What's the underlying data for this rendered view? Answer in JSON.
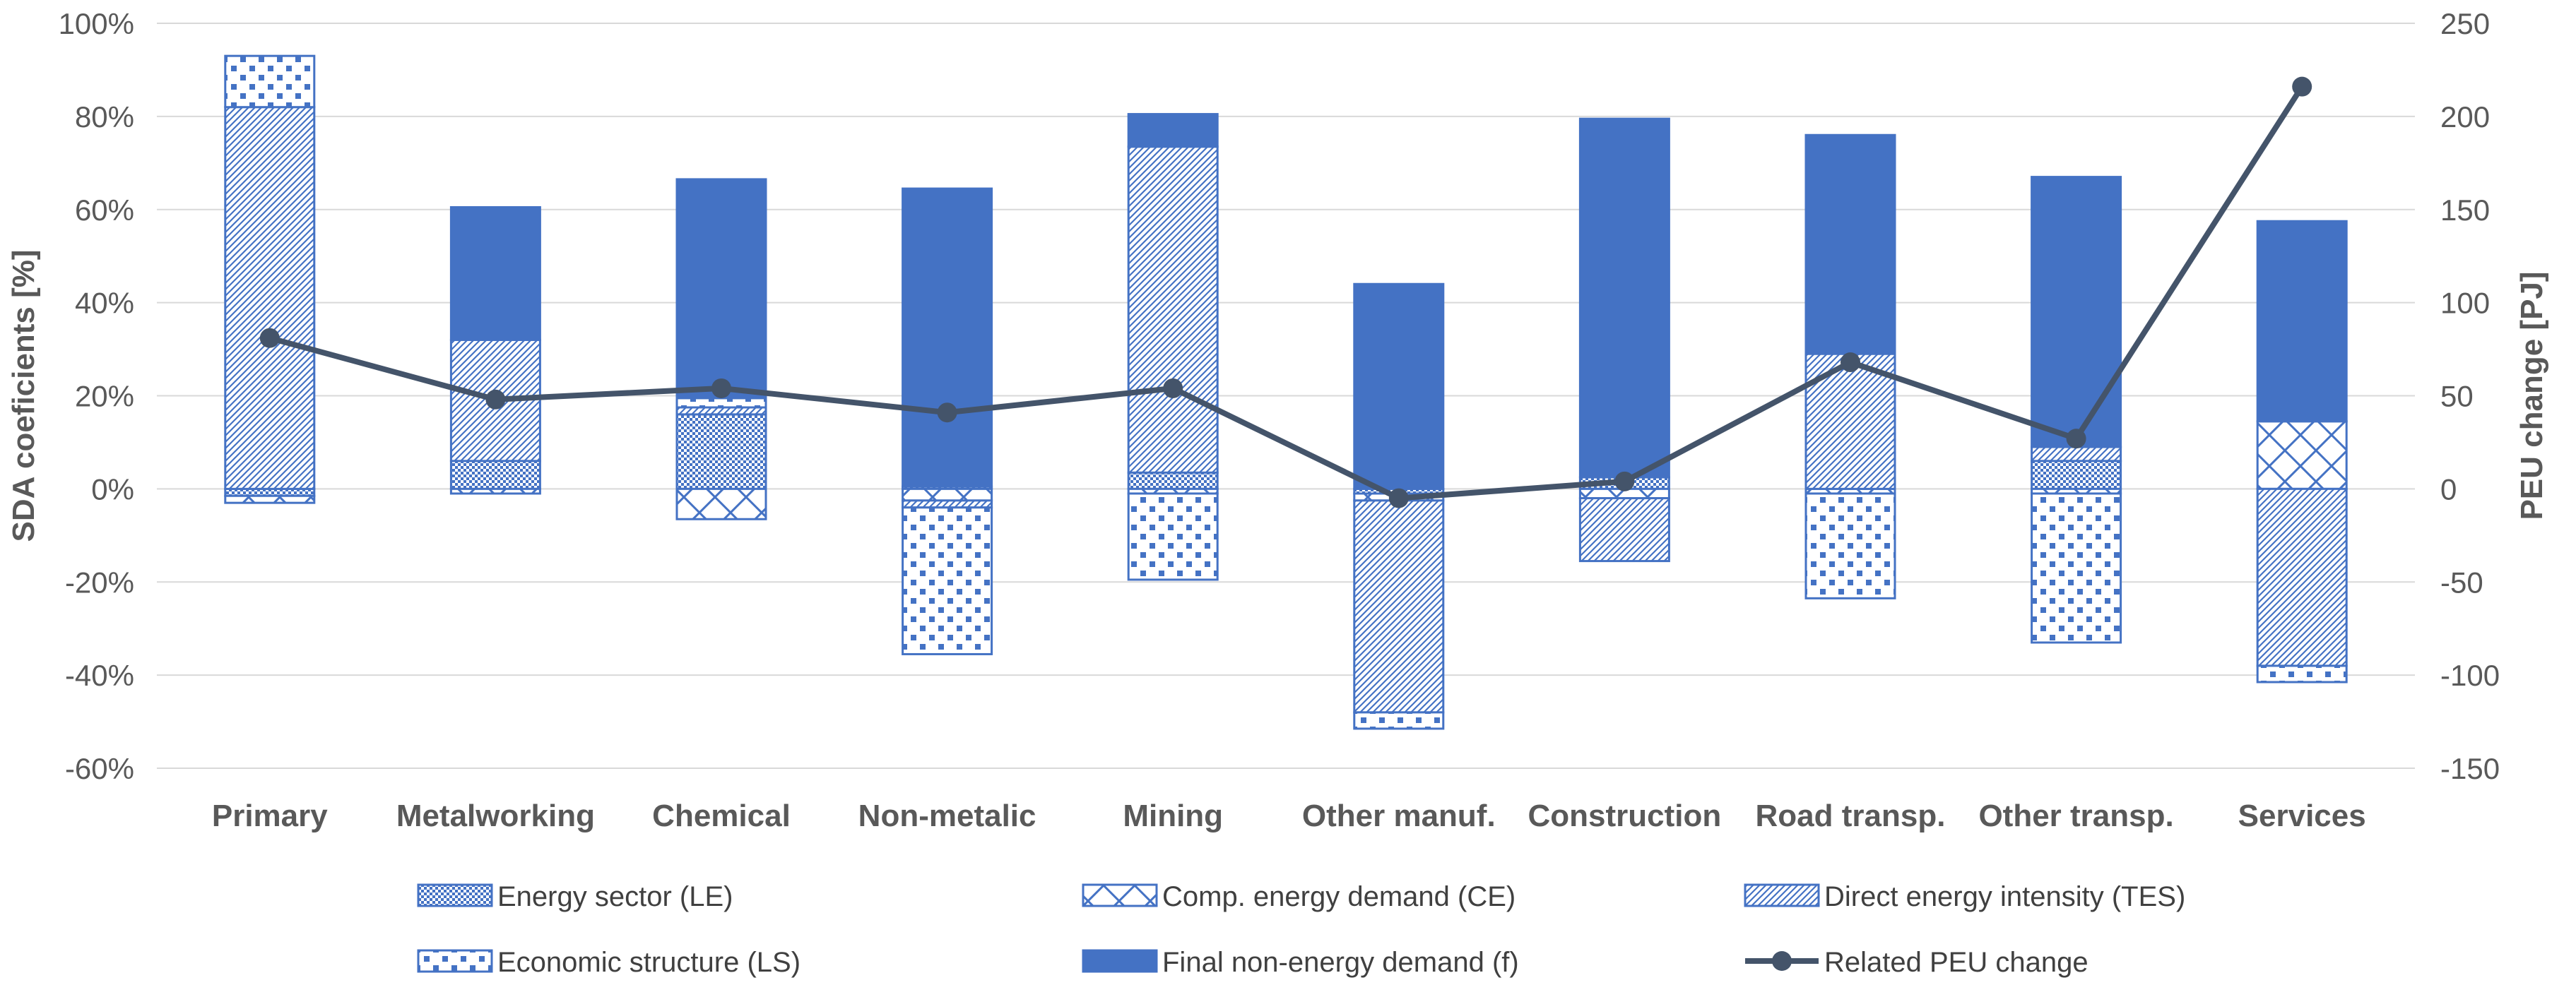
{
  "chart_data": {
    "type": "bar",
    "stacked": true,
    "categories": [
      "Primary",
      "Metalworking",
      "Chemical",
      "Non-metalic",
      "Mining",
      "Other manuf.",
      "Construction",
      "Road transp.",
      "Other transp.",
      "Services"
    ],
    "y_left": {
      "title": "SDA coeficients [%]",
      "min": -60,
      "max": 100,
      "step": 20,
      "tick_labels": [
        "-60%",
        "-40%",
        "-20%",
        "0%",
        "20%",
        "40%",
        "60%",
        "80%",
        "100%"
      ]
    },
    "y_right": {
      "title": "PEU change [PJ]",
      "min": -150,
      "max": 250,
      "step": 50,
      "tick_labels": [
        "-150",
        "-100",
        "-50",
        "0",
        "50",
        "100",
        "150",
        "200",
        "250"
      ]
    },
    "colors": {
      "accent": "#4472C4",
      "line": "#44546A",
      "axis_text": "#595959",
      "gridline": "#D9D9D9"
    },
    "series": [
      {
        "name": "Energy sector (LE)",
        "pattern": "energy-sector",
        "values": [
          -1.5,
          6,
          16,
          0.5,
          3.5,
          -1,
          2.5,
          0,
          6,
          0
        ]
      },
      {
        "name": "Comp. energy demand (CE)",
        "pattern": "comp-energy",
        "values": [
          -1.5,
          -1,
          -6.5,
          -2.5,
          -1,
          -1.5,
          -2,
          -1,
          -1,
          14.5
        ]
      },
      {
        "name": "Direct energy intensity (TES)",
        "pattern": "direct-intensity",
        "values": [
          82,
          26,
          1.5,
          -1.5,
          70,
          -45.5,
          -13.5,
          29,
          3,
          -38
        ]
      },
      {
        "name": "Economic structure (LS)",
        "pattern": "economic-structure",
        "values": [
          11,
          0,
          2,
          -31.5,
          -18.5,
          -3.5,
          0,
          -22.5,
          -32,
          -3.5
        ]
      },
      {
        "name": "Final non-energy demand (f)",
        "pattern": "solid",
        "values": [
          0,
          28.5,
          47,
          64,
          7,
          44,
          77,
          47,
          58,
          43
        ]
      }
    ],
    "line": {
      "name": "Related PEU change",
      "axis": "right",
      "values": [
        81,
        48,
        54,
        41,
        54,
        -5,
        4,
        68,
        27,
        216
      ]
    },
    "legend": {
      "position": "bottom",
      "columns": 3
    }
  }
}
